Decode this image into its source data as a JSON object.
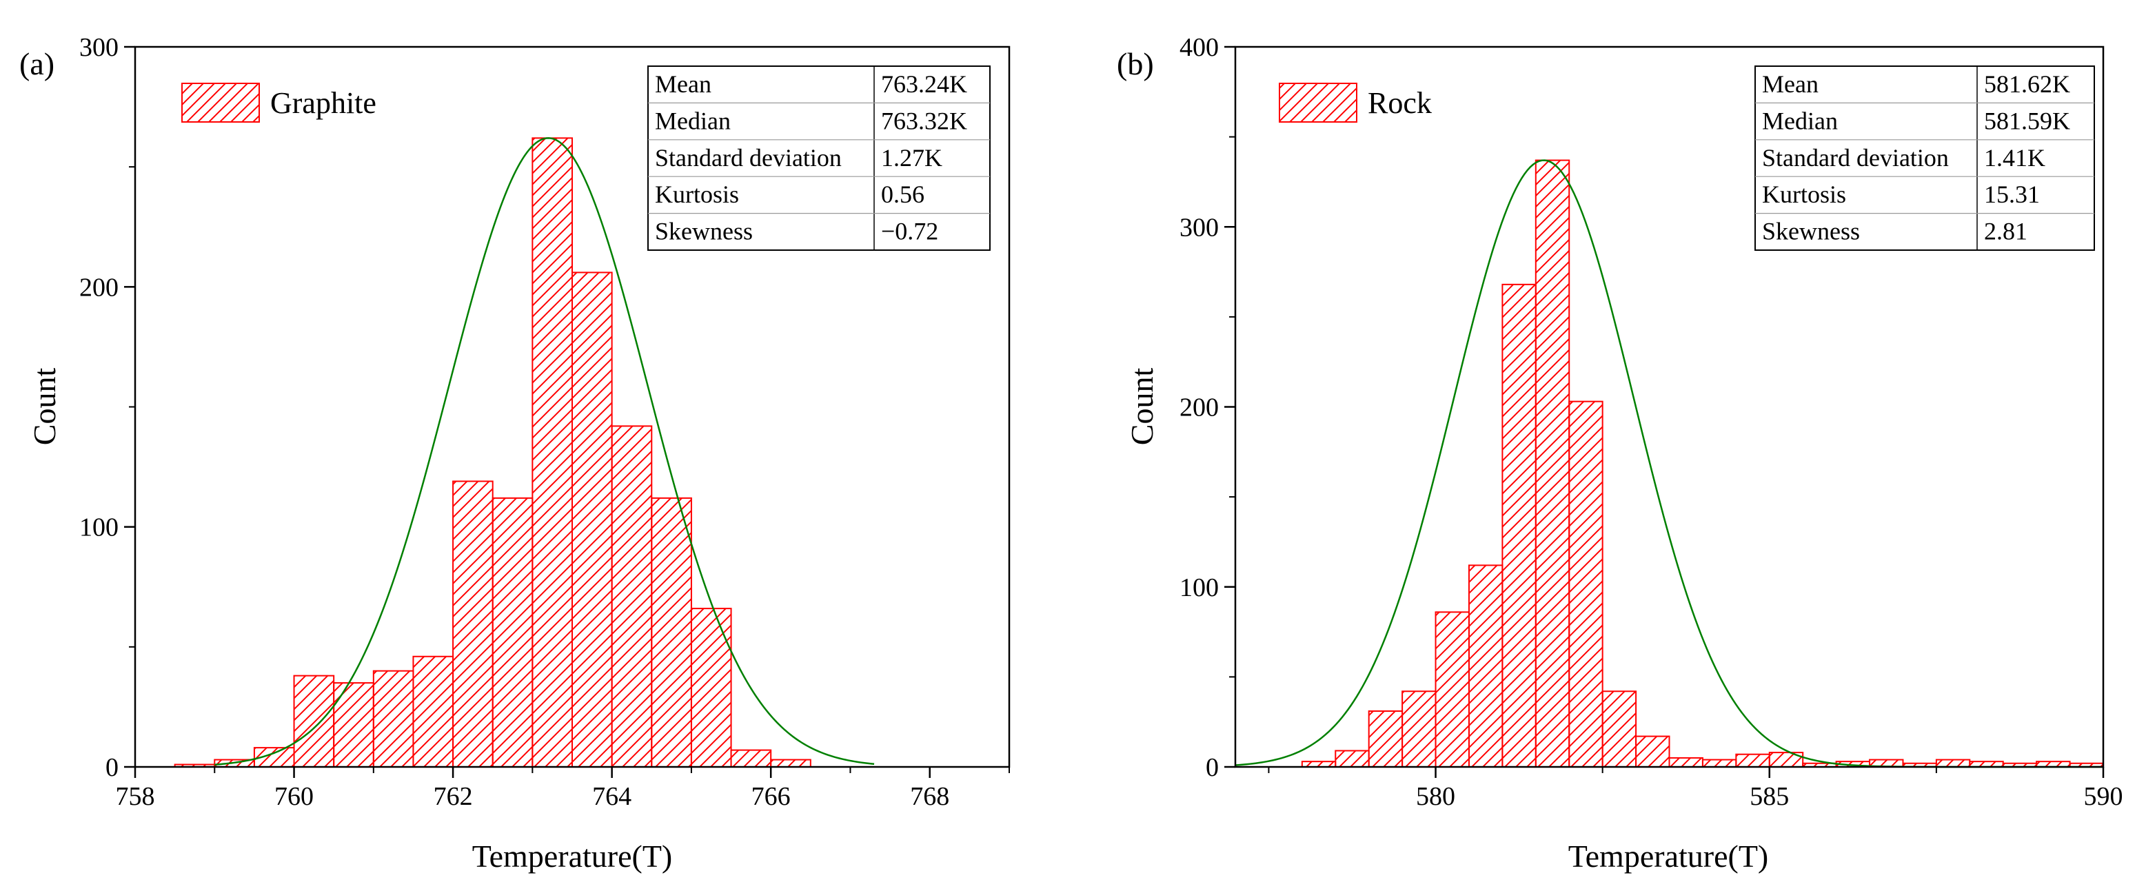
{
  "chart_data": [
    {
      "type": "bar",
      "panel_label": "(a)",
      "legend": "Graphite",
      "xlabel": "Temperature(T)",
      "ylabel": "Count",
      "xlim": [
        758,
        769
      ],
      "ylim": [
        0,
        300
      ],
      "xticks": [
        758,
        760,
        762,
        764,
        766,
        768
      ],
      "yticks": [
        0,
        100,
        200,
        300
      ],
      "bin_width": 0.5,
      "bins": [
        {
          "start": 758.5,
          "count": 1
        },
        {
          "start": 759.0,
          "count": 3
        },
        {
          "start": 759.5,
          "count": 8
        },
        {
          "start": 760.0,
          "count": 38
        },
        {
          "start": 760.5,
          "count": 35
        },
        {
          "start": 761.0,
          "count": 40
        },
        {
          "start": 761.5,
          "count": 46
        },
        {
          "start": 762.0,
          "count": 119
        },
        {
          "start": 762.5,
          "count": 112
        },
        {
          "start": 763.0,
          "count": 262
        },
        {
          "start": 763.5,
          "count": 206
        },
        {
          "start": 764.0,
          "count": 142
        },
        {
          "start": 764.5,
          "count": 112
        },
        {
          "start": 765.0,
          "count": 66
        },
        {
          "start": 765.5,
          "count": 7
        },
        {
          "start": 766.0,
          "count": 3
        }
      ],
      "fit_curve": {
        "type": "normal",
        "center": 763.2,
        "sigma": 1.25,
        "peak": 262,
        "x_range": [
          759,
          767.3
        ]
      },
      "stats": [
        {
          "label": "Mean",
          "value": "763.24K"
        },
        {
          "label": "Median",
          "value": "763.32K"
        },
        {
          "label": "Standard deviation",
          "value": "1.27K"
        },
        {
          "label": "Kurtosis",
          "value": "0.56"
        },
        {
          "label": "Skewness",
          "value": "−0.72"
        }
      ],
      "colors": {
        "bar": "#ff0000",
        "curve": "#008000"
      }
    },
    {
      "type": "bar",
      "panel_label": "(b)",
      "legend": "Rock",
      "xlabel": "Temperature(T)",
      "ylabel": "Count",
      "xlim": [
        577,
        590
      ],
      "ylim": [
        0,
        400
      ],
      "xticks": [
        580,
        585,
        590
      ],
      "yticks": [
        0,
        100,
        200,
        300,
        400
      ],
      "bin_width": 0.5,
      "bins": [
        {
          "start": 578.0,
          "count": 3
        },
        {
          "start": 578.5,
          "count": 9
        },
        {
          "start": 579.0,
          "count": 31
        },
        {
          "start": 579.5,
          "count": 42
        },
        {
          "start": 580.0,
          "count": 86
        },
        {
          "start": 580.5,
          "count": 112
        },
        {
          "start": 581.0,
          "count": 268
        },
        {
          "start": 581.5,
          "count": 337
        },
        {
          "start": 582.0,
          "count": 203
        },
        {
          "start": 582.5,
          "count": 42
        },
        {
          "start": 583.0,
          "count": 17
        },
        {
          "start": 583.5,
          "count": 5
        },
        {
          "start": 584.0,
          "count": 4
        },
        {
          "start": 584.5,
          "count": 7
        },
        {
          "start": 585.0,
          "count": 8
        },
        {
          "start": 585.5,
          "count": 2
        },
        {
          "start": 586.0,
          "count": 3
        },
        {
          "start": 586.5,
          "count": 4
        },
        {
          "start": 587.0,
          "count": 2
        },
        {
          "start": 587.5,
          "count": 4
        },
        {
          "start": 588.0,
          "count": 3
        },
        {
          "start": 588.5,
          "count": 2
        },
        {
          "start": 589.0,
          "count": 3
        },
        {
          "start": 589.5,
          "count": 2
        }
      ],
      "fit_curve": {
        "type": "normal",
        "center": 581.62,
        "sigma": 1.35,
        "peak": 337,
        "x_range": [
          577,
          590
        ]
      },
      "stats": [
        {
          "label": "Mean",
          "value": "581.62K"
        },
        {
          "label": "Median",
          "value": "581.59K"
        },
        {
          "label": "Standard deviation",
          "value": "1.41K"
        },
        {
          "label": "Kurtosis",
          "value": "15.31"
        },
        {
          "label": "Skewness",
          "value": "2.81"
        }
      ],
      "colors": {
        "bar": "#ff0000",
        "curve": "#008000"
      }
    }
  ]
}
